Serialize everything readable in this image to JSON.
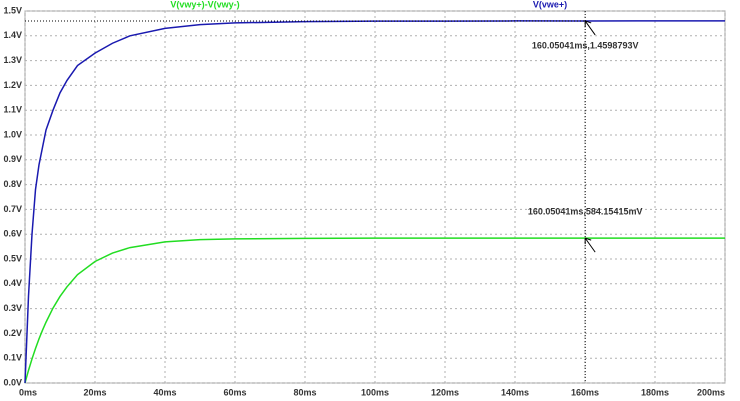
{
  "chart_data": {
    "type": "line",
    "x": [
      0,
      1,
      2,
      3,
      4,
      5,
      6,
      8,
      10,
      12,
      15,
      20,
      25,
      30,
      40,
      50,
      60,
      80,
      100,
      120,
      140,
      160,
      180,
      200
    ],
    "series": [
      {
        "name": "V(vwy+)-V(vwy-)",
        "color": "#22dd22",
        "values": [
          0,
          0.051,
          0.097,
          0.139,
          0.178,
          0.213,
          0.245,
          0.302,
          0.349,
          0.388,
          0.437,
          0.49,
          0.524,
          0.546,
          0.569,
          0.578,
          0.581,
          0.583,
          0.584,
          0.584,
          0.584,
          0.58415415,
          0.584,
          0.584
        ]
      },
      {
        "name": "V(vwe+)",
        "color": "#1a1ab0",
        "values": [
          0,
          0.35,
          0.6,
          0.78,
          0.88,
          0.95,
          1.02,
          1.1,
          1.17,
          1.22,
          1.28,
          1.33,
          1.37,
          1.4,
          1.43,
          1.445,
          1.452,
          1.457,
          1.459,
          1.459,
          1.46,
          1.4598793,
          1.46,
          1.46
        ]
      }
    ],
    "annotations": [
      {
        "text": "160.05041ms,1.4598793V",
        "x": 160.05041,
        "y": 1.4598793
      },
      {
        "text": "160.05041ms,584.15415mV",
        "x": 160.05041,
        "y": 0.58415415
      }
    ],
    "xlim": [
      0,
      200
    ],
    "xticks": [
      {
        "value": 0,
        "label": "0ms"
      },
      {
        "value": 20,
        "label": "20ms"
      },
      {
        "value": 40,
        "label": "40ms"
      },
      {
        "value": 60,
        "label": "60ms"
      },
      {
        "value": 80,
        "label": "80ms"
      },
      {
        "value": 100,
        "label": "100ms"
      },
      {
        "value": 120,
        "label": "120ms"
      },
      {
        "value": 140,
        "label": "140ms"
      },
      {
        "value": 160,
        "label": "160ms"
      },
      {
        "value": 180,
        "label": "180ms"
      },
      {
        "value": 200,
        "label": "200ms"
      }
    ],
    "ylim": [
      0,
      1.5
    ],
    "yticks": [
      {
        "value": 0,
        "label": "0.0V"
      },
      {
        "value": 0.1,
        "label": "0.1V"
      },
      {
        "value": 0.2,
        "label": "0.2V"
      },
      {
        "value": 0.3,
        "label": "0.3V"
      },
      {
        "value": 0.4,
        "label": "0.4V"
      },
      {
        "value": 0.5,
        "label": "0.5V"
      },
      {
        "value": 0.6,
        "label": "0.6V"
      },
      {
        "value": 0.7,
        "label": "0.7V"
      },
      {
        "value": 0.8,
        "label": "0.8V"
      },
      {
        "value": 0.9,
        "label": "0.9V"
      },
      {
        "value": 1.0,
        "label": "1.0V"
      },
      {
        "value": 1.1,
        "label": "1.1V"
      },
      {
        "value": 1.2,
        "label": "1.2V"
      },
      {
        "value": 1.3,
        "label": "1.3V"
      },
      {
        "value": 1.4,
        "label": "1.4V"
      },
      {
        "value": 1.5,
        "label": "1.5V"
      }
    ],
    "grid": true
  }
}
